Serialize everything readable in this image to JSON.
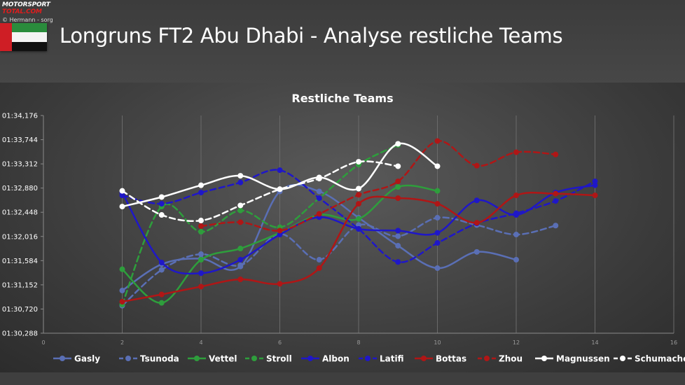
{
  "header": {
    "logo_line1": "MOTORSPORT",
    "logo_line2": "TOTAL.COM",
    "credit": "© Hermann - sorg",
    "title": "Longruns FT2 Abu Dhabi - Analyse restliche Teams"
  },
  "chart_data": {
    "type": "line",
    "title": "Restliche Teams",
    "xlabel": "",
    "ylabel": "",
    "xlim": [
      0,
      16
    ],
    "x_ticks": [
      "0",
      "2",
      "4",
      "6",
      "8",
      "10",
      "12",
      "14",
      "16"
    ],
    "y_ticks": [
      "01:30,288",
      "01:30,720",
      "01:31,152",
      "01:31,584",
      "01:32,016",
      "01:32,448",
      "01:32,880",
      "01:33,312",
      "01:33,744",
      "01:34,176"
    ],
    "ylim": [
      90.288,
      94.176
    ],
    "y_unit": "seconds",
    "grid": "vertical",
    "legend_position": "bottom",
    "series": [
      {
        "name": "Gasly",
        "color": "#5a6fb5",
        "style": "solid",
        "x": [
          2,
          3,
          4,
          5,
          6,
          7,
          8,
          9,
          10,
          11,
          12
        ],
        "y": [
          91.05,
          91.52,
          91.62,
          91.48,
          92.82,
          92.82,
          92.35,
          91.85,
          91.45,
          91.74,
          91.6
        ]
      },
      {
        "name": "Tsunoda",
        "color": "#5a6fb5",
        "style": "dashed",
        "x": [
          2,
          3,
          4,
          5,
          6,
          7,
          8,
          9,
          10,
          11,
          12,
          13
        ],
        "y": [
          90.78,
          91.42,
          91.7,
          91.5,
          92.06,
          91.6,
          92.22,
          92.02,
          92.35,
          92.22,
          92.05,
          92.21
        ]
      },
      {
        "name": "Vettel",
        "color": "#2e9e3c",
        "style": "solid",
        "x": [
          2,
          3,
          4,
          5,
          6,
          7,
          8,
          9,
          10
        ],
        "y": [
          91.43,
          90.83,
          91.6,
          91.8,
          92.08,
          92.4,
          92.33,
          92.9,
          92.83
        ]
      },
      {
        "name": "Stroll",
        "color": "#2e9e3c",
        "style": "dashed",
        "x": [
          2,
          3,
          4,
          5,
          6,
          7,
          8,
          9
        ],
        "y": [
          90.8,
          92.55,
          92.1,
          92.48,
          92.18,
          92.7,
          93.3,
          93.65
        ]
      },
      {
        "name": "Albon",
        "color": "#1f17c8",
        "style": "solid",
        "x": [
          2,
          3,
          4,
          5,
          6,
          7,
          8,
          9,
          10,
          11,
          12,
          13,
          14
        ],
        "y": [
          92.8,
          91.55,
          91.36,
          91.6,
          92.05,
          92.36,
          92.15,
          92.12,
          92.08,
          92.66,
          92.4,
          92.8,
          92.93
        ]
      },
      {
        "name": "Latifi",
        "color": "#1f17c8",
        "style": "dashed",
        "x": [
          2,
          3,
          4,
          5,
          6,
          7,
          8,
          9,
          10,
          11,
          12,
          13,
          14
        ],
        "y": [
          92.75,
          92.6,
          92.8,
          92.98,
          93.2,
          92.7,
          92.15,
          91.56,
          91.9,
          92.25,
          92.43,
          92.65,
          93.0
        ]
      },
      {
        "name": "Bottas",
        "color": "#b01616",
        "style": "solid",
        "x": [
          2,
          3,
          4,
          5,
          6,
          7,
          8,
          9,
          10,
          11,
          12,
          13,
          14
        ],
        "y": [
          90.85,
          90.98,
          91.12,
          91.25,
          91.17,
          91.45,
          92.6,
          92.7,
          92.6,
          92.26,
          92.75,
          92.78,
          92.75
        ]
      },
      {
        "name": "Zhou",
        "color": "#b01616",
        "style": "dashed",
        "x": [
          4,
          5,
          6,
          7,
          8,
          9,
          10,
          11,
          12,
          13
        ],
        "y": [
          92.2,
          92.27,
          92.12,
          92.42,
          92.76,
          93.0,
          93.72,
          93.28,
          93.52,
          93.48
        ]
      },
      {
        "name": "Magnussen",
        "color": "#ffffff",
        "style": "solid",
        "x": [
          2,
          3,
          4,
          5,
          6,
          7,
          8,
          9,
          10
        ],
        "y": [
          92.55,
          92.72,
          92.93,
          93.1,
          92.86,
          93.07,
          92.87,
          93.67,
          93.27
        ]
      },
      {
        "name": "Schumacher",
        "color": "#ffffff",
        "style": "dashed",
        "x": [
          2,
          3,
          4,
          5,
          6,
          7,
          8,
          9
        ],
        "y": [
          92.83,
          92.4,
          92.3,
          92.57,
          92.86,
          93.05,
          93.35,
          93.27
        ]
      }
    ]
  }
}
